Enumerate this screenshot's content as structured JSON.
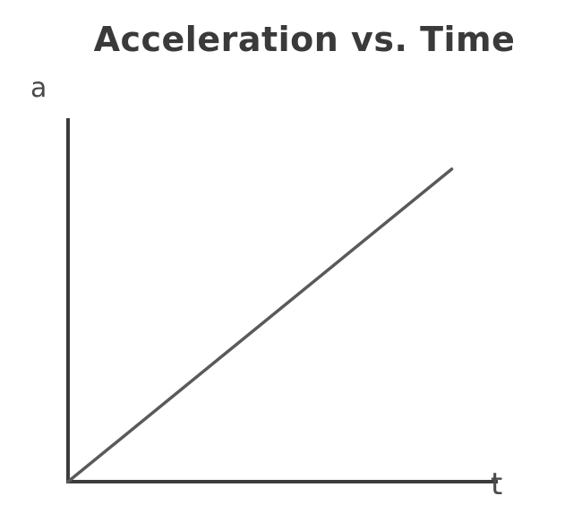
{
  "chart_data": {
    "type": "line",
    "title": "Acceleration vs. Time",
    "xlabel": "t",
    "ylabel": "a",
    "grid": false,
    "legend": "none",
    "tick_labels": false,
    "series": [
      {
        "x": [
          0,
          1
        ],
        "y": [
          0,
          0.86
        ]
      }
    ],
    "xlim": [
      0,
      1.12
    ],
    "ylim": [
      0,
      1
    ],
    "colors": {
      "axis": "#3c3c3c",
      "line": "#5a5a5a"
    }
  }
}
